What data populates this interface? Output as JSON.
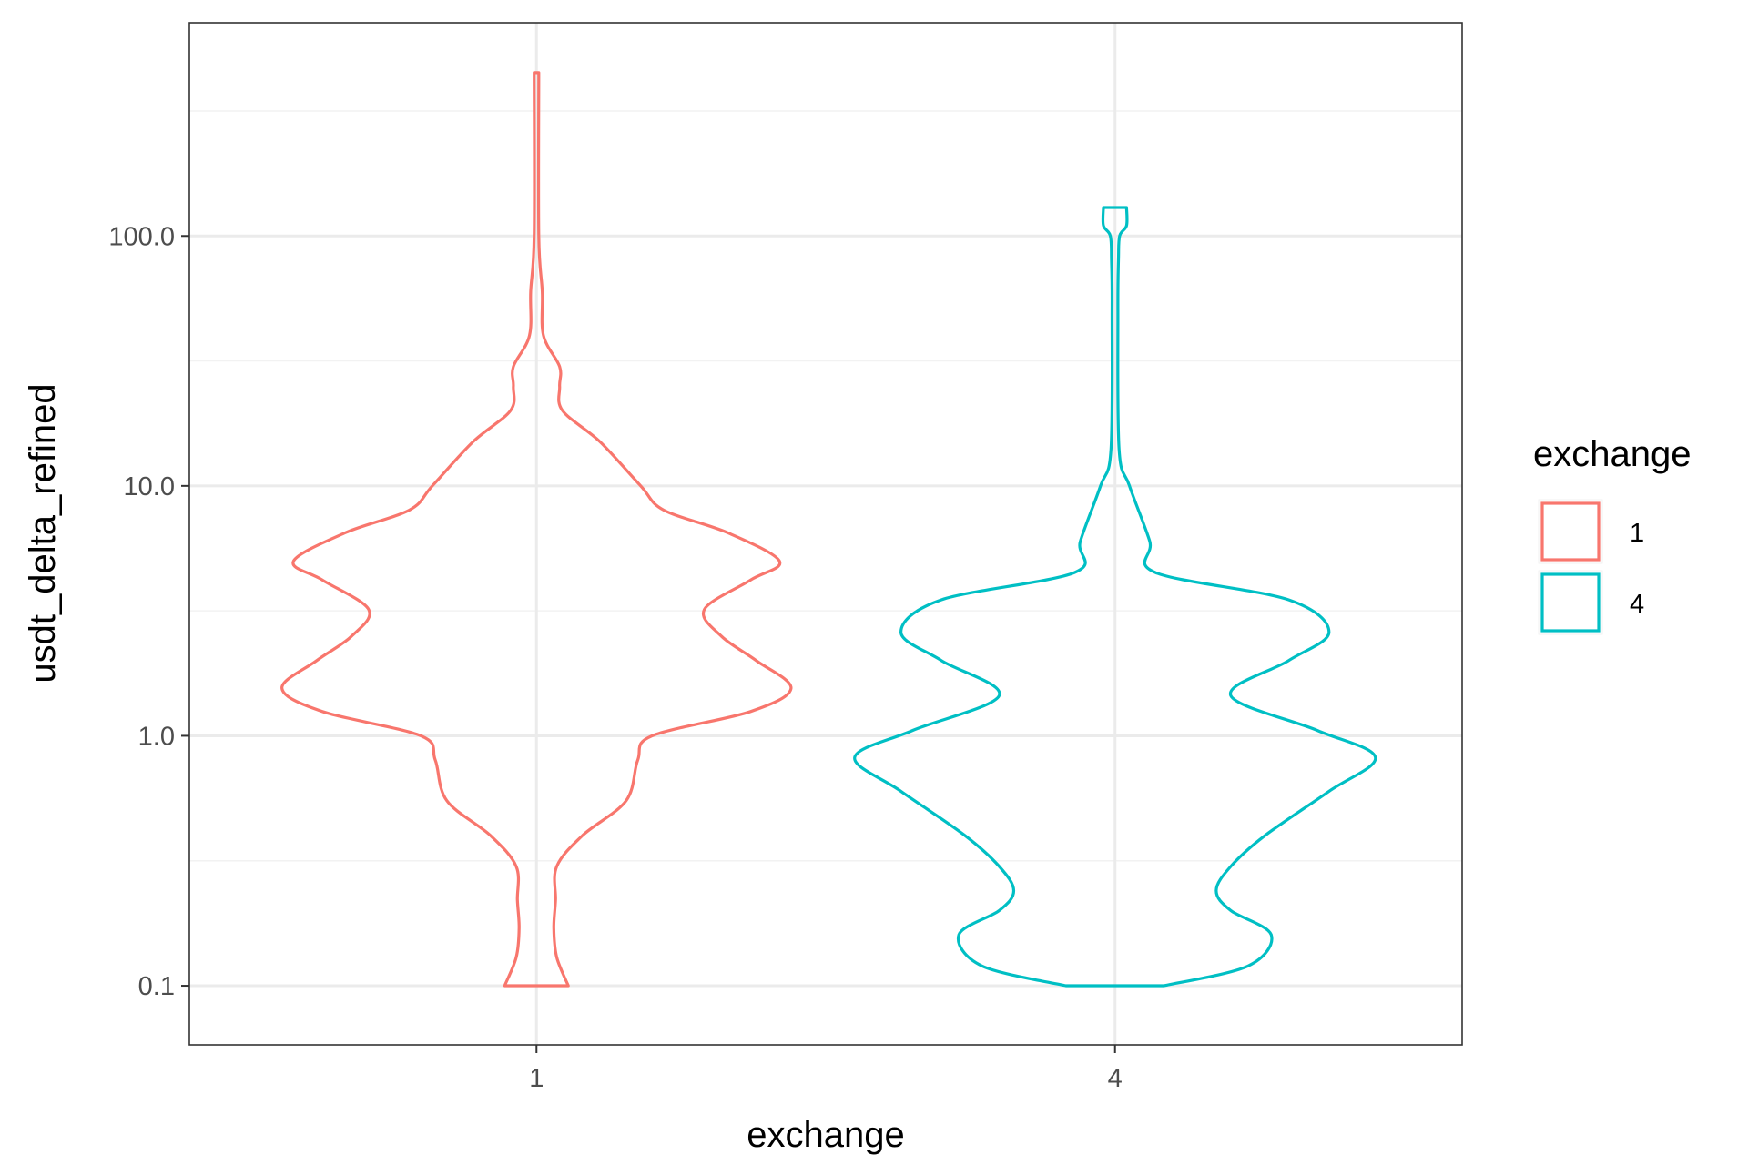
{
  "chart_data": {
    "type": "violin",
    "xlabel": "exchange",
    "ylabel": "usdt_delta_refined",
    "y_scale": "log10",
    "categories": [
      "1",
      "4"
    ],
    "y_ticks": [
      0.1,
      1.0,
      10.0,
      100.0
    ],
    "y_tick_labels": [
      "0.1",
      "1.0",
      "10.0",
      "100.0"
    ],
    "ylim": [
      0.058,
      713
    ],
    "grid": true,
    "legend": {
      "title": "exchange",
      "position": "right",
      "entries": [
        {
          "label": "1",
          "color": "#F8766D"
        },
        {
          "label": "4",
          "color": "#00BFC4"
        }
      ]
    },
    "series": [
      {
        "name": "1",
        "color": "#F8766D",
        "y_min": 0.1,
        "y_max": 450,
        "density_profile": [
          {
            "y": 0.1,
            "half_width": 0.055
          },
          {
            "y": 0.13,
            "half_width": 0.035
          },
          {
            "y": 0.17,
            "half_width": 0.03
          },
          {
            "y": 0.22,
            "half_width": 0.033
          },
          {
            "y": 0.3,
            "half_width": 0.035
          },
          {
            "y": 0.4,
            "half_width": 0.08
          },
          {
            "y": 0.55,
            "half_width": 0.155
          },
          {
            "y": 0.8,
            "half_width": 0.175
          },
          {
            "y": 1.0,
            "half_width": 0.2
          },
          {
            "y": 1.25,
            "half_width": 0.37
          },
          {
            "y": 1.55,
            "half_width": 0.44
          },
          {
            "y": 2.0,
            "half_width": 0.38
          },
          {
            "y": 2.5,
            "half_width": 0.32
          },
          {
            "y": 3.2,
            "half_width": 0.29
          },
          {
            "y": 4.2,
            "half_width": 0.37
          },
          {
            "y": 5.0,
            "half_width": 0.42
          },
          {
            "y": 6.5,
            "half_width": 0.33
          },
          {
            "y": 8.0,
            "half_width": 0.22
          },
          {
            "y": 10.0,
            "half_width": 0.18
          },
          {
            "y": 15.0,
            "half_width": 0.11
          },
          {
            "y": 20.0,
            "half_width": 0.045
          },
          {
            "y": 25.0,
            "half_width": 0.04
          },
          {
            "y": 30.0,
            "half_width": 0.04
          },
          {
            "y": 40.0,
            "half_width": 0.012
          },
          {
            "y": 60.0,
            "half_width": 0.01
          },
          {
            "y": 100.0,
            "half_width": 0.004
          },
          {
            "y": 450.0,
            "half_width": 0.004
          }
        ]
      },
      {
        "name": "4",
        "color": "#00BFC4",
        "y_min": 0.1,
        "y_max": 130,
        "density_profile": [
          {
            "y": 0.1,
            "half_width": 0.085
          },
          {
            "y": 0.12,
            "half_width": 0.23
          },
          {
            "y": 0.16,
            "half_width": 0.27
          },
          {
            "y": 0.2,
            "half_width": 0.2
          },
          {
            "y": 0.24,
            "half_width": 0.175
          },
          {
            "y": 0.3,
            "half_width": 0.2
          },
          {
            "y": 0.4,
            "half_width": 0.26
          },
          {
            "y": 0.6,
            "half_width": 0.37
          },
          {
            "y": 0.82,
            "half_width": 0.45
          },
          {
            "y": 1.05,
            "half_width": 0.35
          },
          {
            "y": 1.45,
            "half_width": 0.2
          },
          {
            "y": 2.0,
            "half_width": 0.3
          },
          {
            "y": 2.6,
            "half_width": 0.37
          },
          {
            "y": 3.5,
            "half_width": 0.3
          },
          {
            "y": 4.5,
            "half_width": 0.07
          },
          {
            "y": 6.0,
            "half_width": 0.06
          },
          {
            "y": 10.0,
            "half_width": 0.025
          },
          {
            "y": 14.0,
            "half_width": 0.007
          },
          {
            "y": 50.0,
            "half_width": 0.005
          },
          {
            "y": 80.0,
            "half_width": 0.006
          },
          {
            "y": 100.0,
            "half_width": 0.008
          },
          {
            "y": 110.0,
            "half_width": 0.02
          },
          {
            "y": 130.0,
            "half_width": 0.02
          }
        ]
      }
    ]
  }
}
